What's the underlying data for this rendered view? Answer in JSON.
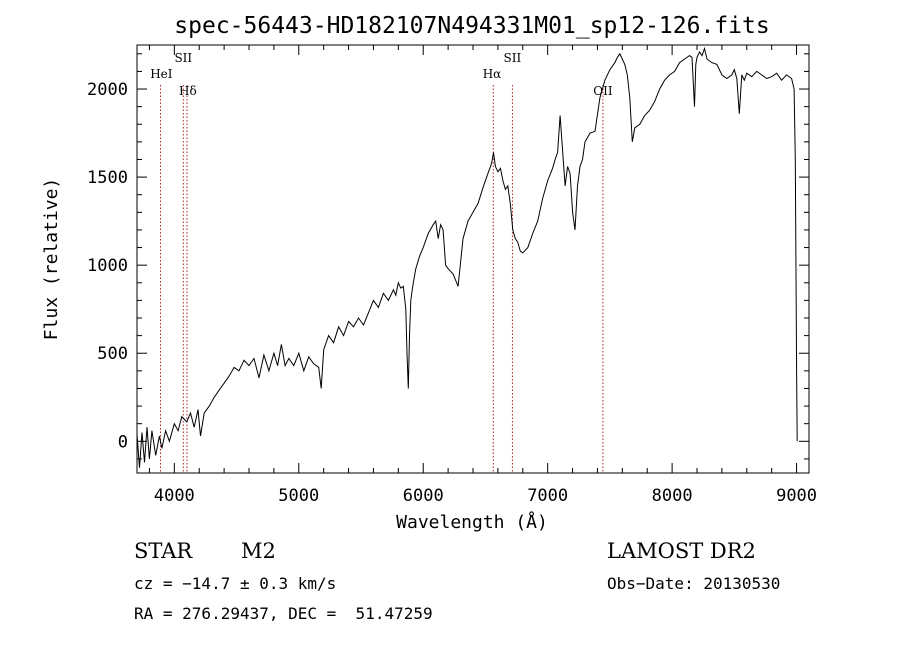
{
  "chart_data": {
    "type": "line",
    "title": "spec-56443-HD182107N494331M01_sp12-126.fits",
    "xlabel": "Wavelength (Å)",
    "ylabel": "Flux (relative)",
    "xlim": [
      3700,
      9100
    ],
    "ylim": [
      -180,
      2250
    ],
    "xticks": [
      4000,
      5000,
      6000,
      7000,
      8000,
      9000
    ],
    "yticks": [
      0,
      500,
      1000,
      1500,
      2000
    ],
    "grid": false,
    "line_color": "#000000",
    "marker_color": "#b22222",
    "lines": [
      {
        "label": "HeI",
        "x": 3889
      },
      {
        "label": "SII",
        "x": 4072
      },
      {
        "label": "Hδ",
        "x": 4102
      },
      {
        "label": "Hα",
        "x": 6563
      },
      {
        "label": "SII",
        "x": 6717
      },
      {
        "label": "OII",
        "x": 7444
      }
    ],
    "series": [
      {
        "x": [
          3700,
          3720,
          3740,
          3760,
          3780,
          3800,
          3820,
          3850,
          3880,
          3900,
          3930,
          3960,
          4000,
          4030,
          4060,
          4100,
          4130,
          4160,
          4190,
          4210,
          4240,
          4280,
          4320,
          4360,
          4400,
          4440,
          4480,
          4520,
          4560,
          4600,
          4640,
          4680,
          4720,
          4760,
          4800,
          4830,
          4860,
          4890,
          4920,
          4960,
          5000,
          5040,
          5080,
          5120,
          5160,
          5180,
          5200,
          5240,
          5280,
          5320,
          5360,
          5400,
          5440,
          5480,
          5520,
          5560,
          5600,
          5640,
          5680,
          5720,
          5760,
          5780,
          5800,
          5820,
          5840,
          5860,
          5870,
          5880,
          5890,
          5900,
          5910,
          5920,
          5940,
          5970,
          6000,
          6040,
          6080,
          6100,
          6120,
          6140,
          6160,
          6180,
          6200,
          6240,
          6280,
          6320,
          6360,
          6400,
          6440,
          6480,
          6520,
          6550,
          6565,
          6580,
          6600,
          6620,
          6640,
          6660,
          6680,
          6700,
          6720,
          6740,
          6760,
          6780,
          6800,
          6840,
          6880,
          6920,
          6960,
          7000,
          7040,
          7060,
          7080,
          7100,
          7120,
          7140,
          7160,
          7180,
          7200,
          7220,
          7240,
          7260,
          7280,
          7300,
          7340,
          7380,
          7420,
          7460,
          7500,
          7540,
          7560,
          7580,
          7600,
          7620,
          7640,
          7660,
          7680,
          7700,
          7740,
          7780,
          7820,
          7860,
          7900,
          7940,
          7980,
          8020,
          8060,
          8100,
          8140,
          8160,
          8180,
          8190,
          8200,
          8220,
          8240,
          8260,
          8280,
          8320,
          8360,
          8400,
          8440,
          8480,
          8500,
          8520,
          8540,
          8560,
          8580,
          8600,
          8640,
          8680,
          8720,
          8760,
          8800,
          8840,
          8880,
          8920,
          8960,
          8980,
          8990,
          9000,
          9005
        ],
        "values": [
          40,
          -150,
          50,
          -120,
          80,
          -100,
          60,
          -80,
          30,
          -40,
          60,
          0,
          100,
          60,
          140,
          110,
          160,
          80,
          180,
          30,
          160,
          200,
          250,
          290,
          330,
          370,
          420,
          400,
          460,
          430,
          470,
          360,
          490,
          400,
          500,
          430,
          550,
          430,
          470,
          430,
          500,
          400,
          480,
          440,
          420,
          300,
          520,
          600,
          560,
          650,
          600,
          680,
          650,
          700,
          660,
          730,
          800,
          760,
          840,
          800,
          860,
          830,
          900,
          870,
          880,
          750,
          500,
          300,
          600,
          800,
          850,
          900,
          980,
          1050,
          1100,
          1180,
          1230,
          1250,
          1150,
          1230,
          1200,
          1000,
          980,
          950,
          880,
          1150,
          1250,
          1300,
          1350,
          1440,
          1520,
          1580,
          1640,
          1560,
          1530,
          1550,
          1480,
          1430,
          1450,
          1350,
          1200,
          1150,
          1130,
          1080,
          1070,
          1100,
          1180,
          1250,
          1380,
          1480,
          1550,
          1600,
          1640,
          1850,
          1650,
          1450,
          1560,
          1520,
          1300,
          1200,
          1450,
          1560,
          1600,
          1700,
          1750,
          1760,
          1950,
          2050,
          2110,
          2150,
          2180,
          2200,
          2170,
          2140,
          2080,
          1950,
          1700,
          1780,
          1800,
          1850,
          1880,
          1930,
          2000,
          2050,
          2080,
          2100,
          2150,
          2170,
          2190,
          2180,
          1900,
          2140,
          2180,
          2210,
          2190,
          2230,
          2170,
          2150,
          2140,
          2080,
          2060,
          2080,
          2110,
          2060,
          1860,
          2080,
          2050,
          2090,
          2070,
          2100,
          2080,
          2060,
          2070,
          2090,
          2050,
          2080,
          2060,
          2000,
          1600,
          400,
          0
        ]
      }
    ]
  },
  "info": {
    "object_class": "STAR",
    "subclass": "M2",
    "survey": "LAMOST DR2",
    "velocity": "cz = −14.7 ± 0.3 km/s",
    "obs_date": "Obs−Date: 20130530",
    "coords": "RA = 276.29437, DEC =  51.47259"
  }
}
